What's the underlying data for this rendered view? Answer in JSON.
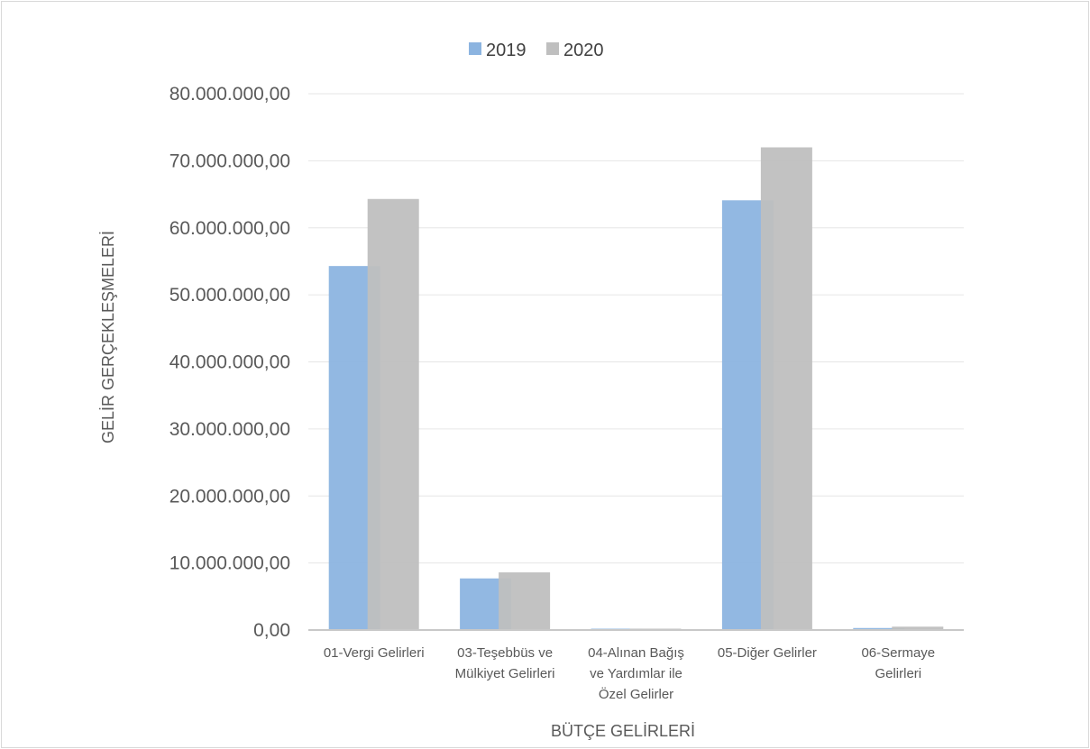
{
  "chart_data": {
    "type": "bar",
    "title": "",
    "xlabel": "BÜTÇE GELİRLERİ",
    "ylabel": "GELİR GERÇEKLEŞMELERİ",
    "categories": [
      [
        "01-Vergi Gelirleri"
      ],
      [
        "03-Teşebbüs ve",
        "Mülkiyet Gelirleri"
      ],
      [
        "04-Alınan Bağış",
        "ve Yardımlar ile",
        "Özel Gelirler"
      ],
      [
        "05-Diğer Gelirler"
      ],
      [
        "06-Sermaye",
        "Gelirleri"
      ]
    ],
    "series": [
      {
        "name": "2019",
        "color": "#8cb4e0",
        "values": [
          54300000,
          7700000,
          200000,
          64100000,
          300000
        ]
      },
      {
        "name": "2020",
        "color": "#bfbfbf",
        "values": [
          64300000,
          8600000,
          200000,
          72000000,
          500000
        ]
      }
    ],
    "ylim": [
      0,
      80000000
    ],
    "yticks": [
      {
        "value": 0,
        "label": "0,00"
      },
      {
        "value": 10000000,
        "label": "10.000.000,00"
      },
      {
        "value": 20000000,
        "label": "20.000.000,00"
      },
      {
        "value": 30000000,
        "label": "30.000.000,00"
      },
      {
        "value": 40000000,
        "label": "40.000.000,00"
      },
      {
        "value": 50000000,
        "label": "50.000.000,00"
      },
      {
        "value": 60000000,
        "label": "60.000.000,00"
      },
      {
        "value": 70000000,
        "label": "70.000.000,00"
      },
      {
        "value": 80000000,
        "label": "80.000.000,00"
      }
    ],
    "grid": true,
    "legend_position": "top-center"
  }
}
